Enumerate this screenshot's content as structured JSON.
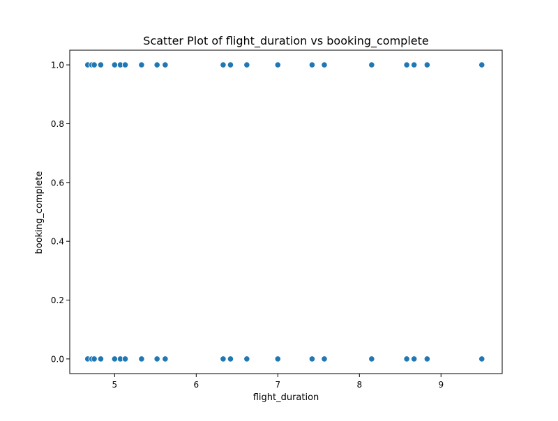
{
  "chart_data": {
    "type": "scatter",
    "title": "Scatter Plot of flight_duration vs booking_complete",
    "xlabel": "flight_duration",
    "ylabel": "booking_complete",
    "xlim": [
      4.45,
      9.75
    ],
    "ylim": [
      -0.05,
      1.05
    ],
    "xticks": [
      5,
      6,
      7,
      8,
      9
    ],
    "xtick_labels": [
      "5",
      "6",
      "7",
      "8",
      "9"
    ],
    "yticks": [
      0.0,
      0.2,
      0.4,
      0.6,
      0.8,
      1.0
    ],
    "ytick_labels": [
      "0.0",
      "0.2",
      "0.4",
      "0.6",
      "0.8",
      "1.0"
    ],
    "grid": false,
    "colors": {
      "point": "#1f77b4",
      "point_edge": "#ffffff",
      "axis": "#000000"
    },
    "points": [
      {
        "x": 4.67,
        "y": 1
      },
      {
        "x": 4.72,
        "y": 1
      },
      {
        "x": 4.75,
        "y": 1
      },
      {
        "x": 4.83,
        "y": 1
      },
      {
        "x": 5.0,
        "y": 1
      },
      {
        "x": 5.07,
        "y": 1
      },
      {
        "x": 5.13,
        "y": 1
      },
      {
        "x": 5.33,
        "y": 1
      },
      {
        "x": 5.52,
        "y": 1
      },
      {
        "x": 5.62,
        "y": 1
      },
      {
        "x": 6.33,
        "y": 1
      },
      {
        "x": 6.42,
        "y": 1
      },
      {
        "x": 6.62,
        "y": 1
      },
      {
        "x": 7.0,
        "y": 1
      },
      {
        "x": 7.42,
        "y": 1
      },
      {
        "x": 7.57,
        "y": 1
      },
      {
        "x": 8.15,
        "y": 1
      },
      {
        "x": 8.58,
        "y": 1
      },
      {
        "x": 8.67,
        "y": 1
      },
      {
        "x": 8.83,
        "y": 1
      },
      {
        "x": 9.5,
        "y": 1
      },
      {
        "x": 4.67,
        "y": 0
      },
      {
        "x": 4.72,
        "y": 0
      },
      {
        "x": 4.75,
        "y": 0
      },
      {
        "x": 4.83,
        "y": 0
      },
      {
        "x": 5.0,
        "y": 0
      },
      {
        "x": 5.07,
        "y": 0
      },
      {
        "x": 5.13,
        "y": 0
      },
      {
        "x": 5.33,
        "y": 0
      },
      {
        "x": 5.52,
        "y": 0
      },
      {
        "x": 5.62,
        "y": 0
      },
      {
        "x": 6.33,
        "y": 0
      },
      {
        "x": 6.42,
        "y": 0
      },
      {
        "x": 6.62,
        "y": 0
      },
      {
        "x": 7.0,
        "y": 0
      },
      {
        "x": 7.42,
        "y": 0
      },
      {
        "x": 7.57,
        "y": 0
      },
      {
        "x": 8.15,
        "y": 0
      },
      {
        "x": 8.58,
        "y": 0
      },
      {
        "x": 8.67,
        "y": 0
      },
      {
        "x": 8.83,
        "y": 0
      },
      {
        "x": 9.5,
        "y": 0
      }
    ]
  }
}
